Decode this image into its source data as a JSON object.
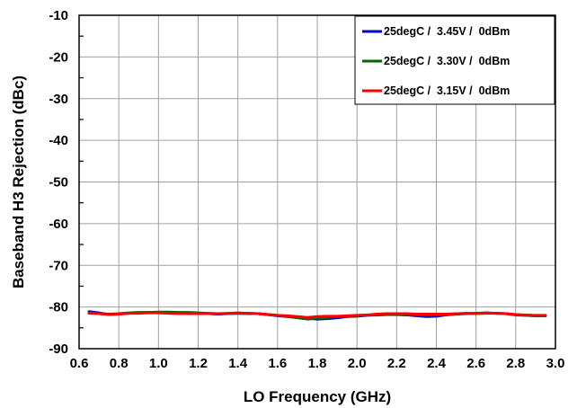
{
  "chart_data": {
    "type": "line",
    "title": "",
    "xlabel": "LO Frequency (GHz)",
    "ylabel": "Baseband H3 Rejection (dBc)",
    "xlim": [
      0.6,
      3.0
    ],
    "ylim": [
      -90,
      -10
    ],
    "xticks": [
      "0.6",
      "0.8",
      "1.0",
      "1.2",
      "1.4",
      "1.6",
      "1.8",
      "2.0",
      "2.2",
      "2.4",
      "2.6",
      "2.8",
      "3.0"
    ],
    "yticks": [
      "-10",
      "-20",
      "-30",
      "-40",
      "-50",
      "-60",
      "-70",
      "-80",
      "-90"
    ],
    "grid": true,
    "legend_position": "top-right",
    "x": [
      0.65,
      0.7,
      0.75,
      0.8,
      0.85,
      0.9,
      0.95,
      1.0,
      1.05,
      1.1,
      1.15,
      1.2,
      1.25,
      1.3,
      1.35,
      1.4,
      1.45,
      1.5,
      1.55,
      1.6,
      1.65,
      1.7,
      1.75,
      1.8,
      1.85,
      1.9,
      1.95,
      2.0,
      2.05,
      2.1,
      2.15,
      2.2,
      2.25,
      2.3,
      2.35,
      2.4,
      2.45,
      2.5,
      2.55,
      2.6,
      2.65,
      2.7,
      2.75,
      2.8,
      2.85,
      2.9,
      2.95
    ],
    "series": [
      {
        "name": "25degC /  3.45V /  0dBm",
        "color": "#0000cc",
        "values": [
          -81.1,
          -81.4,
          -81.8,
          -81.7,
          -81.5,
          -81.4,
          -81.3,
          -81.4,
          -81.3,
          -81.4,
          -81.5,
          -81.6,
          -81.6,
          -81.7,
          -81.6,
          -81.5,
          -81.6,
          -81.6,
          -81.8,
          -82.1,
          -82.3,
          -82.5,
          -82.7,
          -82.9,
          -82.8,
          -82.6,
          -82.3,
          -82.2,
          -82.0,
          -81.9,
          -81.8,
          -81.8,
          -81.9,
          -82.1,
          -82.3,
          -82.2,
          -81.9,
          -81.7,
          -81.6,
          -81.5,
          -81.4,
          -81.5,
          -81.6,
          -81.9,
          -82.0,
          -82.1,
          -82.1
        ]
      },
      {
        "name": "25degC /  3.30V /  0dBm",
        "color": "#006600",
        "values": [
          -81.4,
          -81.6,
          -81.7,
          -81.6,
          -81.4,
          -81.3,
          -81.3,
          -81.2,
          -81.2,
          -81.3,
          -81.3,
          -81.4,
          -81.5,
          -81.6,
          -81.6,
          -81.5,
          -81.5,
          -81.6,
          -81.8,
          -82.0,
          -82.3,
          -82.6,
          -82.9,
          -82.7,
          -82.5,
          -82.3,
          -82.2,
          -82.1,
          -81.9,
          -81.8,
          -81.7,
          -81.7,
          -81.8,
          -81.9,
          -82.0,
          -81.9,
          -81.8,
          -81.7,
          -81.5,
          -81.6,
          -81.5,
          -81.5,
          -81.6,
          -81.8,
          -82.0,
          -82.1,
          -82.1
        ]
      },
      {
        "name": "25degC /  3.15V /  0dBm",
        "color": "#ff0000",
        "values": [
          -81.5,
          -81.6,
          -81.8,
          -81.7,
          -81.5,
          -81.5,
          -81.4,
          -81.4,
          -81.5,
          -81.6,
          -81.6,
          -81.6,
          -81.6,
          -81.6,
          -81.5,
          -81.4,
          -81.5,
          -81.6,
          -81.8,
          -82.0,
          -82.1,
          -82.3,
          -82.5,
          -82.3,
          -82.2,
          -82.2,
          -82.1,
          -82.0,
          -81.9,
          -81.7,
          -81.6,
          -81.6,
          -81.6,
          -81.7,
          -81.7,
          -81.7,
          -81.7,
          -81.6,
          -81.5,
          -81.6,
          -81.4,
          -81.5,
          -81.6,
          -81.8,
          -81.9,
          -82.0,
          -82.0
        ]
      }
    ]
  }
}
